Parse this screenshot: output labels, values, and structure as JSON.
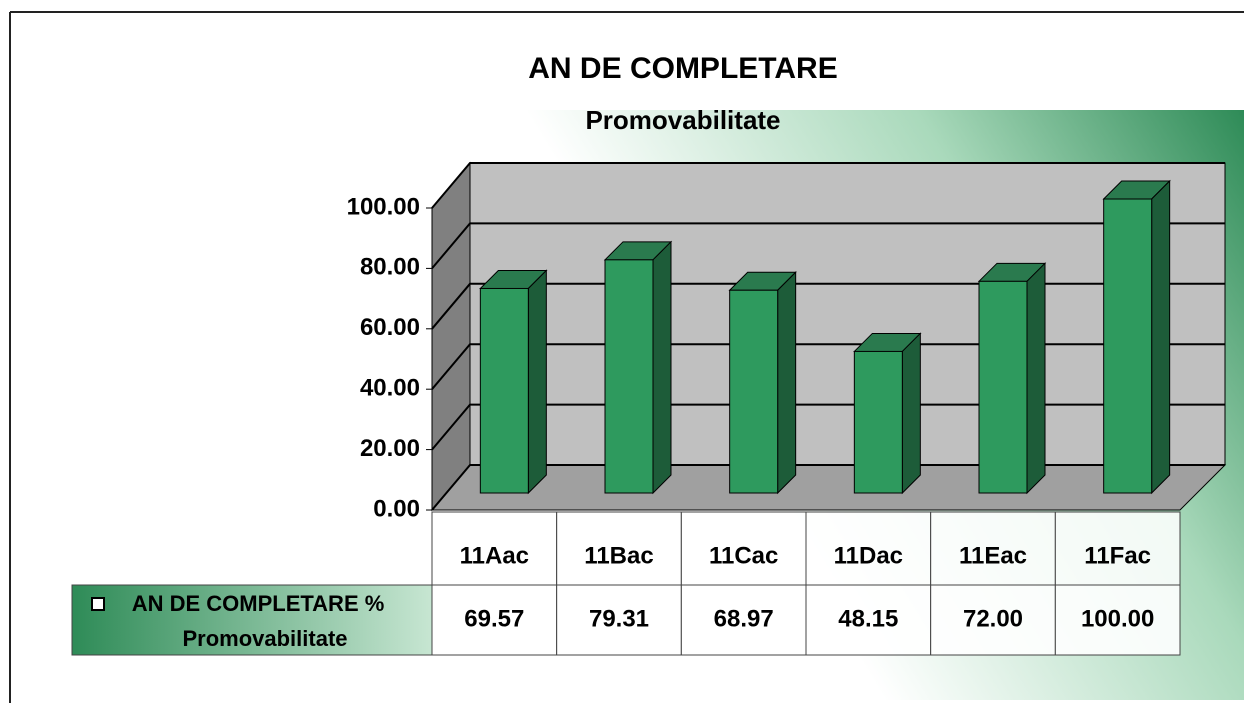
{
  "chart_data": {
    "type": "bar3d",
    "title": "AN DE COMPLETARE",
    "subtitle": "Promovabilitate",
    "categories": [
      "11Aac",
      "11Bac",
      "11Cac",
      "11Dac",
      "11Eac",
      "11Fac"
    ],
    "series": [
      {
        "name": "AN DE COMPLETARE % Promovabilitate",
        "color": "#2e9a5e",
        "values": [
          69.57,
          79.31,
          68.97,
          48.15,
          72.0,
          100.0
        ],
        "value_labels": [
          "69.57",
          "79.31",
          "68.97",
          "48.15",
          "72.00",
          "100.00"
        ]
      }
    ],
    "ylim": [
      0,
      100
    ],
    "yticks": [
      {
        "value": 0,
        "label": "0.00"
      },
      {
        "value": 20,
        "label": "20.00"
      },
      {
        "value": 40,
        "label": "40.00"
      },
      {
        "value": 60,
        "label": "60.00"
      },
      {
        "value": 80,
        "label": "80.00"
      },
      {
        "value": 100,
        "label": "100.00"
      }
    ],
    "grid": true,
    "legend": "table"
  }
}
